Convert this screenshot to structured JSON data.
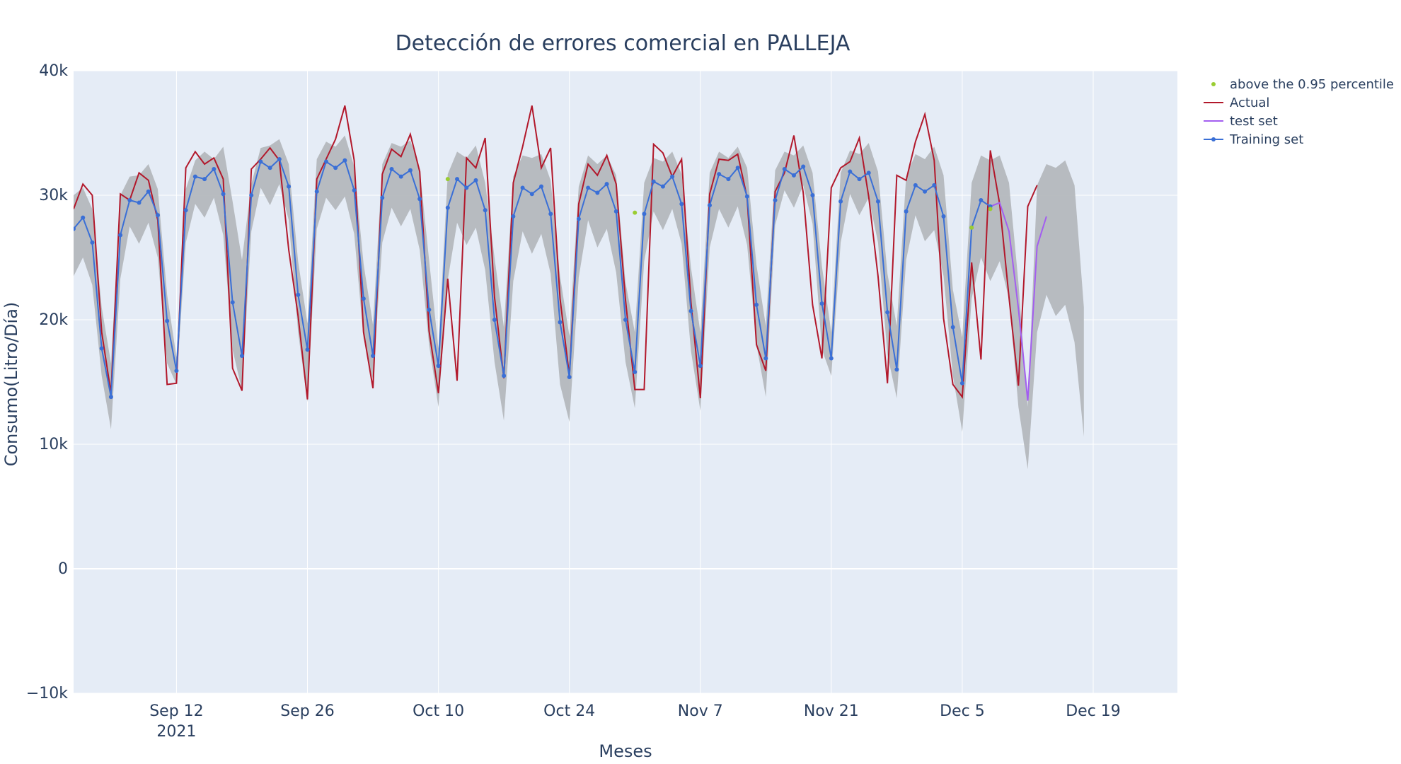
{
  "chart_data": {
    "type": "line",
    "title": "Detección de errores comercial en PALLEJA",
    "xlabel": "Meses",
    "ylabel": "Consumo(Litro/Día)",
    "xlim": [
      "2021-09-01",
      "2021-12-28"
    ],
    "ylim": [
      -10000,
      40000
    ],
    "grid": true,
    "legend_position": "top-right",
    "x_ticks": [
      {
        "date": "2021-09-12",
        "label": "Sep 12",
        "sublabel": "2021"
      },
      {
        "date": "2021-09-26",
        "label": "Sep 26"
      },
      {
        "date": "2021-10-10",
        "label": "Oct 10"
      },
      {
        "date": "2021-10-24",
        "label": "Oct 24"
      },
      {
        "date": "2021-11-07",
        "label": "Nov 7"
      },
      {
        "date": "2021-11-21",
        "label": "Nov 21"
      },
      {
        "date": "2021-12-05",
        "label": "Dec 5"
      },
      {
        "date": "2021-12-19",
        "label": "Dec 19"
      }
    ],
    "y_ticks": [
      {
        "value": -10000,
        "label": "−10k"
      },
      {
        "value": 0,
        "label": "0"
      },
      {
        "value": 10000,
        "label": "10k"
      },
      {
        "value": 20000,
        "label": "20k"
      },
      {
        "value": 30000,
        "label": "30k"
      },
      {
        "value": 40000,
        "label": "40k"
      }
    ],
    "band": {
      "start": "2021-09-01",
      "upper": [
        30000,
        30600,
        28900,
        21000,
        16500,
        30000,
        31500,
        31600,
        32500,
        30500,
        22000,
        17000,
        30500,
        32800,
        33500,
        32900,
        33900,
        29500,
        24800,
        30900,
        33800,
        34000,
        34500,
        32500,
        24700,
        19700,
        32900,
        34300,
        33900,
        34800,
        32300,
        24500,
        19600,
        32500,
        34200,
        33900,
        34400,
        32100,
        24800,
        17700,
        31700,
        33500,
        33000,
        34000,
        31000,
        25000,
        19400,
        31500,
        33200,
        33000,
        33300,
        31200,
        23500,
        18700,
        30700,
        33200,
        32500,
        33200,
        31600,
        23000,
        19000,
        31000,
        33000,
        32700,
        33500,
        31700,
        24200,
        19000,
        31800,
        33500,
        33000,
        33900,
        32200,
        24400,
        19500,
        32000,
        33500,
        33200,
        34000,
        31800,
        24300,
        19000,
        31800,
        33600,
        33300,
        34200,
        31900,
        23700,
        19500,
        31500,
        33300,
        32900,
        33900,
        31600,
        22400,
        18600,
        31000,
        33200,
        32800,
        33200,
        31000,
        23000,
        13000,
        30800,
        32500,
        32200,
        32800,
        30800,
        21000
      ],
      "lower": [
        23500,
        25000,
        22800,
        15500,
        11200,
        23300,
        27500,
        26100,
        27800,
        25000,
        16500,
        14800,
        26200,
        29300,
        28200,
        29800,
        26800,
        17600,
        14300,
        27100,
        30600,
        29200,
        30900,
        28000,
        19000,
        13400,
        27300,
        29800,
        28800,
        29900,
        26900,
        18500,
        15200,
        26200,
        29000,
        27500,
        28900,
        25600,
        18000,
        13000,
        23200,
        27800,
        26000,
        27400,
        24000,
        16600,
        11900,
        23100,
        27100,
        25300,
        26900,
        23700,
        14800,
        11800,
        23400,
        28000,
        25800,
        27300,
        23800,
        16600,
        12900,
        24700,
        28700,
        27200,
        28900,
        26100,
        17500,
        12700,
        25800,
        28900,
        27400,
        29100,
        26000,
        18000,
        13800,
        27600,
        30400,
        29000,
        30800,
        27700,
        17600,
        15500,
        26200,
        30100,
        28400,
        29800,
        26200,
        17200,
        13700,
        24800,
        28400,
        26300,
        27200,
        23500,
        15500,
        11000,
        21700,
        25000,
        23100,
        24700,
        21700,
        13000,
        8000,
        19000,
        22000,
        20300,
        21200,
        18200,
        10600
      ]
    },
    "series": [
      {
        "name": "Actual",
        "start": "2021-09-01",
        "values": [
          28900,
          30900,
          30000,
          19000,
          14100,
          30100,
          29600,
          31800,
          31200,
          28000,
          14800,
          14900,
          32200,
          33500,
          32500,
          33000,
          31300,
          16100,
          14300,
          32100,
          32900,
          33800,
          32800,
          25600,
          20300,
          13600,
          31300,
          32900,
          34500,
          37200,
          32800,
          19000,
          14500,
          31700,
          33700,
          33100,
          34900,
          31900,
          19100,
          14100,
          23300,
          15100,
          33000,
          32200,
          34600,
          21800,
          15300,
          31000,
          33900,
          37200,
          32200,
          33800,
          21700,
          15500,
          29300,
          32500,
          31600,
          33200,
          30900,
          21600,
          14400,
          14400,
          34100,
          33400,
          31500,
          32900,
          21400,
          13700,
          30100,
          32900,
          32800,
          33300,
          29800,
          18000,
          15900,
          30300,
          31800,
          34800,
          30200,
          21200,
          16900,
          30600,
          32200,
          32700,
          34600,
          29900,
          23500,
          14900,
          31600,
          31200,
          34300,
          36500,
          32800,
          20100,
          14800,
          13800,
          24600,
          16800,
          33600,
          29300,
          21800,
          14700,
          29100,
          30800
        ]
      },
      {
        "name": "Training set",
        "start": "2021-09-01",
        "values": [
          27300,
          28200,
          26200,
          17700,
          13800,
          26800,
          29600,
          29400,
          30300,
          28400,
          19900,
          15900,
          28800,
          31500,
          31300,
          32100,
          30100,
          21400,
          17100,
          30000,
          32700,
          32200,
          32900,
          30700,
          22000,
          17600,
          30300,
          32700,
          32200,
          32800,
          30400,
          21700,
          17100,
          29800,
          32100,
          31500,
          32000,
          29700,
          20800,
          16300,
          29000,
          31300,
          30600,
          31200,
          28800,
          20000,
          15500,
          28300,
          30600,
          30100,
          30700,
          28500,
          19800,
          15400,
          28100,
          30600,
          30200,
          30900,
          28700,
          20000,
          15800,
          28500,
          31100,
          30700,
          31500,
          29300,
          20700,
          16300,
          29200,
          31700,
          31300,
          32200,
          29900,
          21200,
          16900,
          29600,
          32100,
          31600,
          32300,
          30000,
          21300,
          16900,
          29500,
          31900,
          31300,
          31800,
          29500,
          20600,
          16000,
          28700,
          30800,
          30300,
          30800,
          28300,
          19400,
          14900,
          27400,
          29600,
          29100
        ]
      },
      {
        "name": "test set",
        "start": "2021-12-08",
        "values": [
          29100,
          29400,
          27100,
          20900,
          13500,
          25900,
          28300
        ]
      }
    ],
    "anomalies": {
      "name": "above the 0.95 percentile",
      "points": [
        {
          "date": "2021-10-11",
          "value": 31300
        },
        {
          "date": "2021-10-31",
          "value": 28600
        },
        {
          "date": "2021-12-06",
          "value": 27400
        },
        {
          "date": "2021-12-08",
          "value": 28900
        }
      ]
    },
    "colors": {
      "plot_bg": "#e5ecf6",
      "grid": "#ffffff",
      "band": "#b4b8bd",
      "actual": "#b2182b",
      "training": "#3a6fd6",
      "test": "#a35ef0",
      "anomaly": "#9acd32"
    }
  },
  "legend": {
    "items": [
      {
        "label": "above the 0.95 percentile",
        "kind": "marker",
        "color": "#9acd32"
      },
      {
        "label": "Actual",
        "kind": "line",
        "color": "#b2182b"
      },
      {
        "label": "test set",
        "kind": "line",
        "color": "#a35ef0"
      },
      {
        "label": "Training set",
        "kind": "line-marker",
        "color": "#3a6fd6"
      }
    ]
  }
}
